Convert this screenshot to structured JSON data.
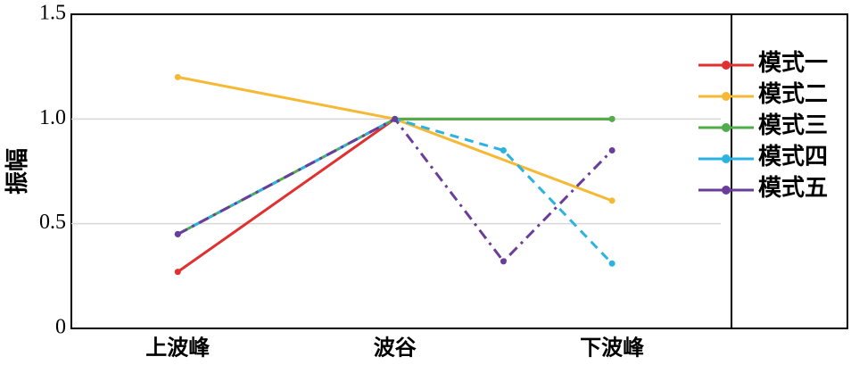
{
  "chart_data": {
    "type": "line",
    "y_label": "振幅",
    "xlim": [
      -0.49,
      2.55
    ],
    "xticks": [
      {
        "value": 0,
        "label": "上波峰"
      },
      {
        "value": 1,
        "label": "波谷"
      },
      {
        "value": 2,
        "label": "下波峰"
      }
    ],
    "ylim": [
      0,
      1.5
    ],
    "yticks": [
      0,
      0.5,
      {
        "value": 1,
        "label": "1.0"
      },
      1.5
    ],
    "grid": true,
    "legend": "right",
    "series": [
      {
        "name": "模式一",
        "color": "#e03030",
        "dash": "solid",
        "x": [
          0,
          1,
          2
        ],
        "values": [
          0.27,
          1.0,
          1.0
        ]
      },
      {
        "name": "模式二",
        "color": "#f5b935",
        "dash": "solid",
        "x": [
          0,
          1,
          2
        ],
        "values": [
          1.2,
          1.0,
          0.61
        ]
      },
      {
        "name": "模式三",
        "color": "#4fae4a",
        "dash": "solid",
        "x": [
          0,
          1,
          2
        ],
        "values": [
          0.45,
          1.0,
          1.0
        ]
      },
      {
        "name": "模式四",
        "color": "#2ab3e0",
        "dash": "dashed",
        "x": [
          0,
          1,
          1.5,
          2
        ],
        "values": [
          0.45,
          1.0,
          0.85,
          0.31
        ]
      },
      {
        "name": "模式五",
        "color": "#6a3d9a",
        "dash": "dashdot",
        "x": [
          0,
          1,
          1.5,
          2
        ],
        "values": [
          0.45,
          1.0,
          0.32,
          0.85
        ]
      }
    ]
  }
}
